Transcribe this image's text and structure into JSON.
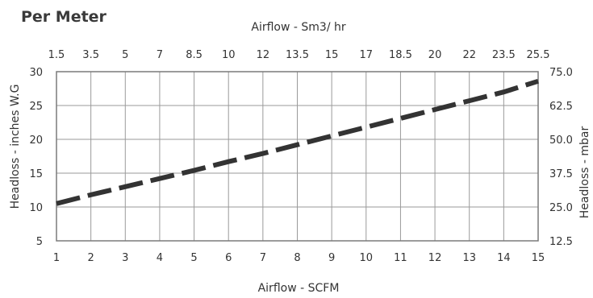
{
  "chart_data": {
    "type": "line",
    "title": "Per Meter",
    "xlabel": "Airflow - SCFM",
    "x2label": "Airflow - Sm3/ hr",
    "ylabel": "Headloss - inches W.G",
    "y2label": "Headloss - mbar",
    "xlim": [
      1,
      15
    ],
    "ylim": [
      5,
      30
    ],
    "x_ticks": [
      "1",
      "2",
      "3",
      "4",
      "5",
      "6",
      "7",
      "8",
      "9",
      "10",
      "11",
      "12",
      "13",
      "14",
      "15"
    ],
    "x2_ticks": [
      "1.5",
      "3.5",
      "5",
      "7",
      "8.5",
      "10",
      "12",
      "13.5",
      "15",
      "17",
      "18.5",
      "20",
      "22",
      "23.5",
      "25.5"
    ],
    "y_ticks": [
      "5",
      "10",
      "15",
      "20",
      "25",
      "30"
    ],
    "y2_ticks": [
      "12.5",
      "25.0",
      "37.5",
      "50.0",
      "62.5",
      "75.0"
    ],
    "grid": true,
    "series": [
      {
        "style": "dashed",
        "color": "#333333",
        "points": [
          {
            "x": 1,
            "y": 10.5
          },
          {
            "x": 2,
            "y": 11.8
          },
          {
            "x": 3,
            "y": 13.0
          },
          {
            "x": 4,
            "y": 14.2
          },
          {
            "x": 5,
            "y": 15.4
          },
          {
            "x": 6,
            "y": 16.7
          },
          {
            "x": 7,
            "y": 17.9
          },
          {
            "x": 8,
            "y": 19.2
          },
          {
            "x": 9,
            "y": 20.5
          },
          {
            "x": 10,
            "y": 21.8
          },
          {
            "x": 11,
            "y": 23.1
          },
          {
            "x": 12,
            "y": 24.4
          },
          {
            "x": 13,
            "y": 25.7
          },
          {
            "x": 14,
            "y": 27.0
          },
          {
            "x": 15,
            "y": 28.6
          }
        ]
      }
    ]
  }
}
